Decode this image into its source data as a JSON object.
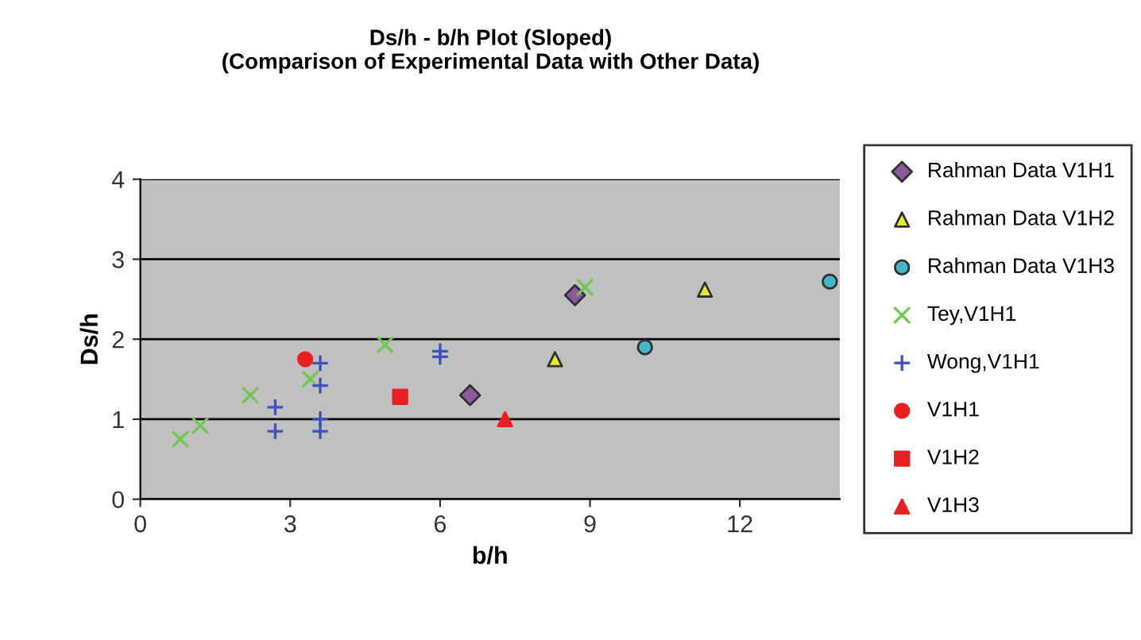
{
  "chart_data": {
    "type": "scatter",
    "title": "Ds/h - b/h Plot (Sloped)\n(Comparison of Experimental Data with Other Data)",
    "xlabel": "b/h",
    "ylabel": "Ds/h",
    "xlim": [
      0,
      14
    ],
    "ylim": [
      0,
      4
    ],
    "xticks": [
      0,
      3,
      6,
      9,
      12
    ],
    "yticks": [
      0,
      1,
      2,
      3,
      4
    ],
    "grid": "y",
    "legend": "right",
    "series": [
      {
        "name": "Rahman Data V1H1",
        "color": "#8b5a9a",
        "marker": "diamond",
        "x": [
          6.6,
          8.7
        ],
        "values": [
          1.3,
          2.55
        ]
      },
      {
        "name": "Rahman Data V1H2",
        "color": "#e8e830",
        "marker": "triangle",
        "x": [
          8.3,
          11.3
        ],
        "values": [
          1.75,
          2.62
        ]
      },
      {
        "name": "Rahman Data V1H3",
        "color": "#40b8c8",
        "marker": "circle",
        "x": [
          10.1,
          13.8
        ],
        "values": [
          1.9,
          2.72
        ]
      },
      {
        "name": "Tey,V1H1",
        "color": "#70c850",
        "marker": "cross",
        "x": [
          0.8,
          1.2,
          2.2,
          3.4,
          4.9,
          8.9
        ],
        "values": [
          0.75,
          0.92,
          1.3,
          1.5,
          1.93,
          2.65
        ]
      },
      {
        "name": "Wong,V1H1",
        "color": "#4050c0",
        "marker": "plus",
        "x": [
          2.7,
          2.7,
          3.6,
          3.6,
          3.6,
          3.6,
          6.0,
          6.0
        ],
        "values": [
          1.15,
          0.85,
          1.7,
          1.42,
          1.0,
          0.85,
          1.85,
          1.78
        ]
      },
      {
        "name": "V1H1",
        "color": "#e82020",
        "marker": "circle",
        "x": [
          3.3
        ],
        "values": [
          1.75
        ]
      },
      {
        "name": "V1H2",
        "color": "#e82020",
        "marker": "square",
        "x": [
          5.2
        ],
        "values": [
          1.28
        ]
      },
      {
        "name": "V1H3",
        "color": "#e82020",
        "marker": "triangle",
        "x": [
          7.3
        ],
        "values": [
          1.0
        ]
      }
    ]
  }
}
